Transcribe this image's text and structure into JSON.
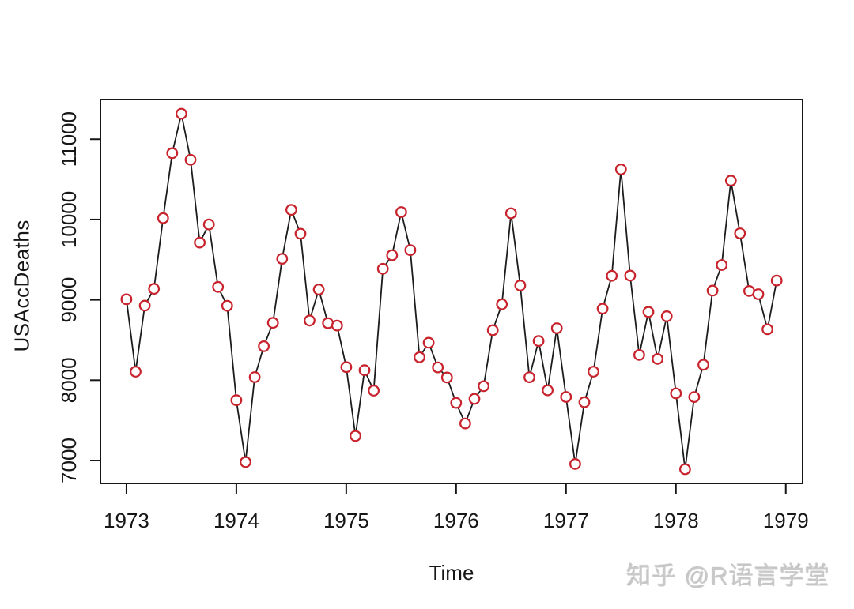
{
  "page": {
    "background": "#ffffff"
  },
  "watermark": {
    "text": "知乎 @R语言学堂",
    "color": "#c9c9c9"
  },
  "chart_data": {
    "type": "line",
    "title": "",
    "xlabel": "Time",
    "ylabel": "USAccDeaths",
    "series": [
      {
        "name": "USAccDeaths",
        "start_year": 1973,
        "frequency": 12,
        "values": [
          9007,
          8106,
          8928,
          9137,
          10017,
          10826,
          11317,
          10744,
          9713,
          9938,
          9161,
          8927,
          7750,
          6981,
          8038,
          8422,
          8714,
          9512,
          10120,
          9823,
          8743,
          9129,
          8710,
          8680,
          8162,
          7306,
          8124,
          7870,
          9387,
          9556,
          10093,
          9620,
          8285,
          8466,
          8160,
          8034,
          7717,
          7461,
          7767,
          7925,
          8623,
          8945,
          10078,
          9179,
          8037,
          8488,
          7874,
          8647,
          7792,
          6957,
          7726,
          8106,
          8890,
          9299,
          10625,
          9302,
          8314,
          8850,
          8265,
          8796,
          7836,
          6892,
          7791,
          8192,
          9115,
          9434,
          10484,
          9827,
          9110,
          9070,
          8633,
          9240
        ]
      }
    ],
    "xticks": [
      1973,
      1974,
      1975,
      1976,
      1977,
      1978,
      1979
    ],
    "yticks": [
      7000,
      8000,
      9000,
      10000,
      11000
    ],
    "xlim": [
      1972.763,
      1979.153
    ],
    "ylim": [
      6715,
      11494
    ],
    "grid": false,
    "legend": null,
    "point_style": "open-circle",
    "line_color": "#1c1c1c",
    "point_color": "#c8232c",
    "point_fill": "#ffffff",
    "axis_color": "#161616"
  }
}
